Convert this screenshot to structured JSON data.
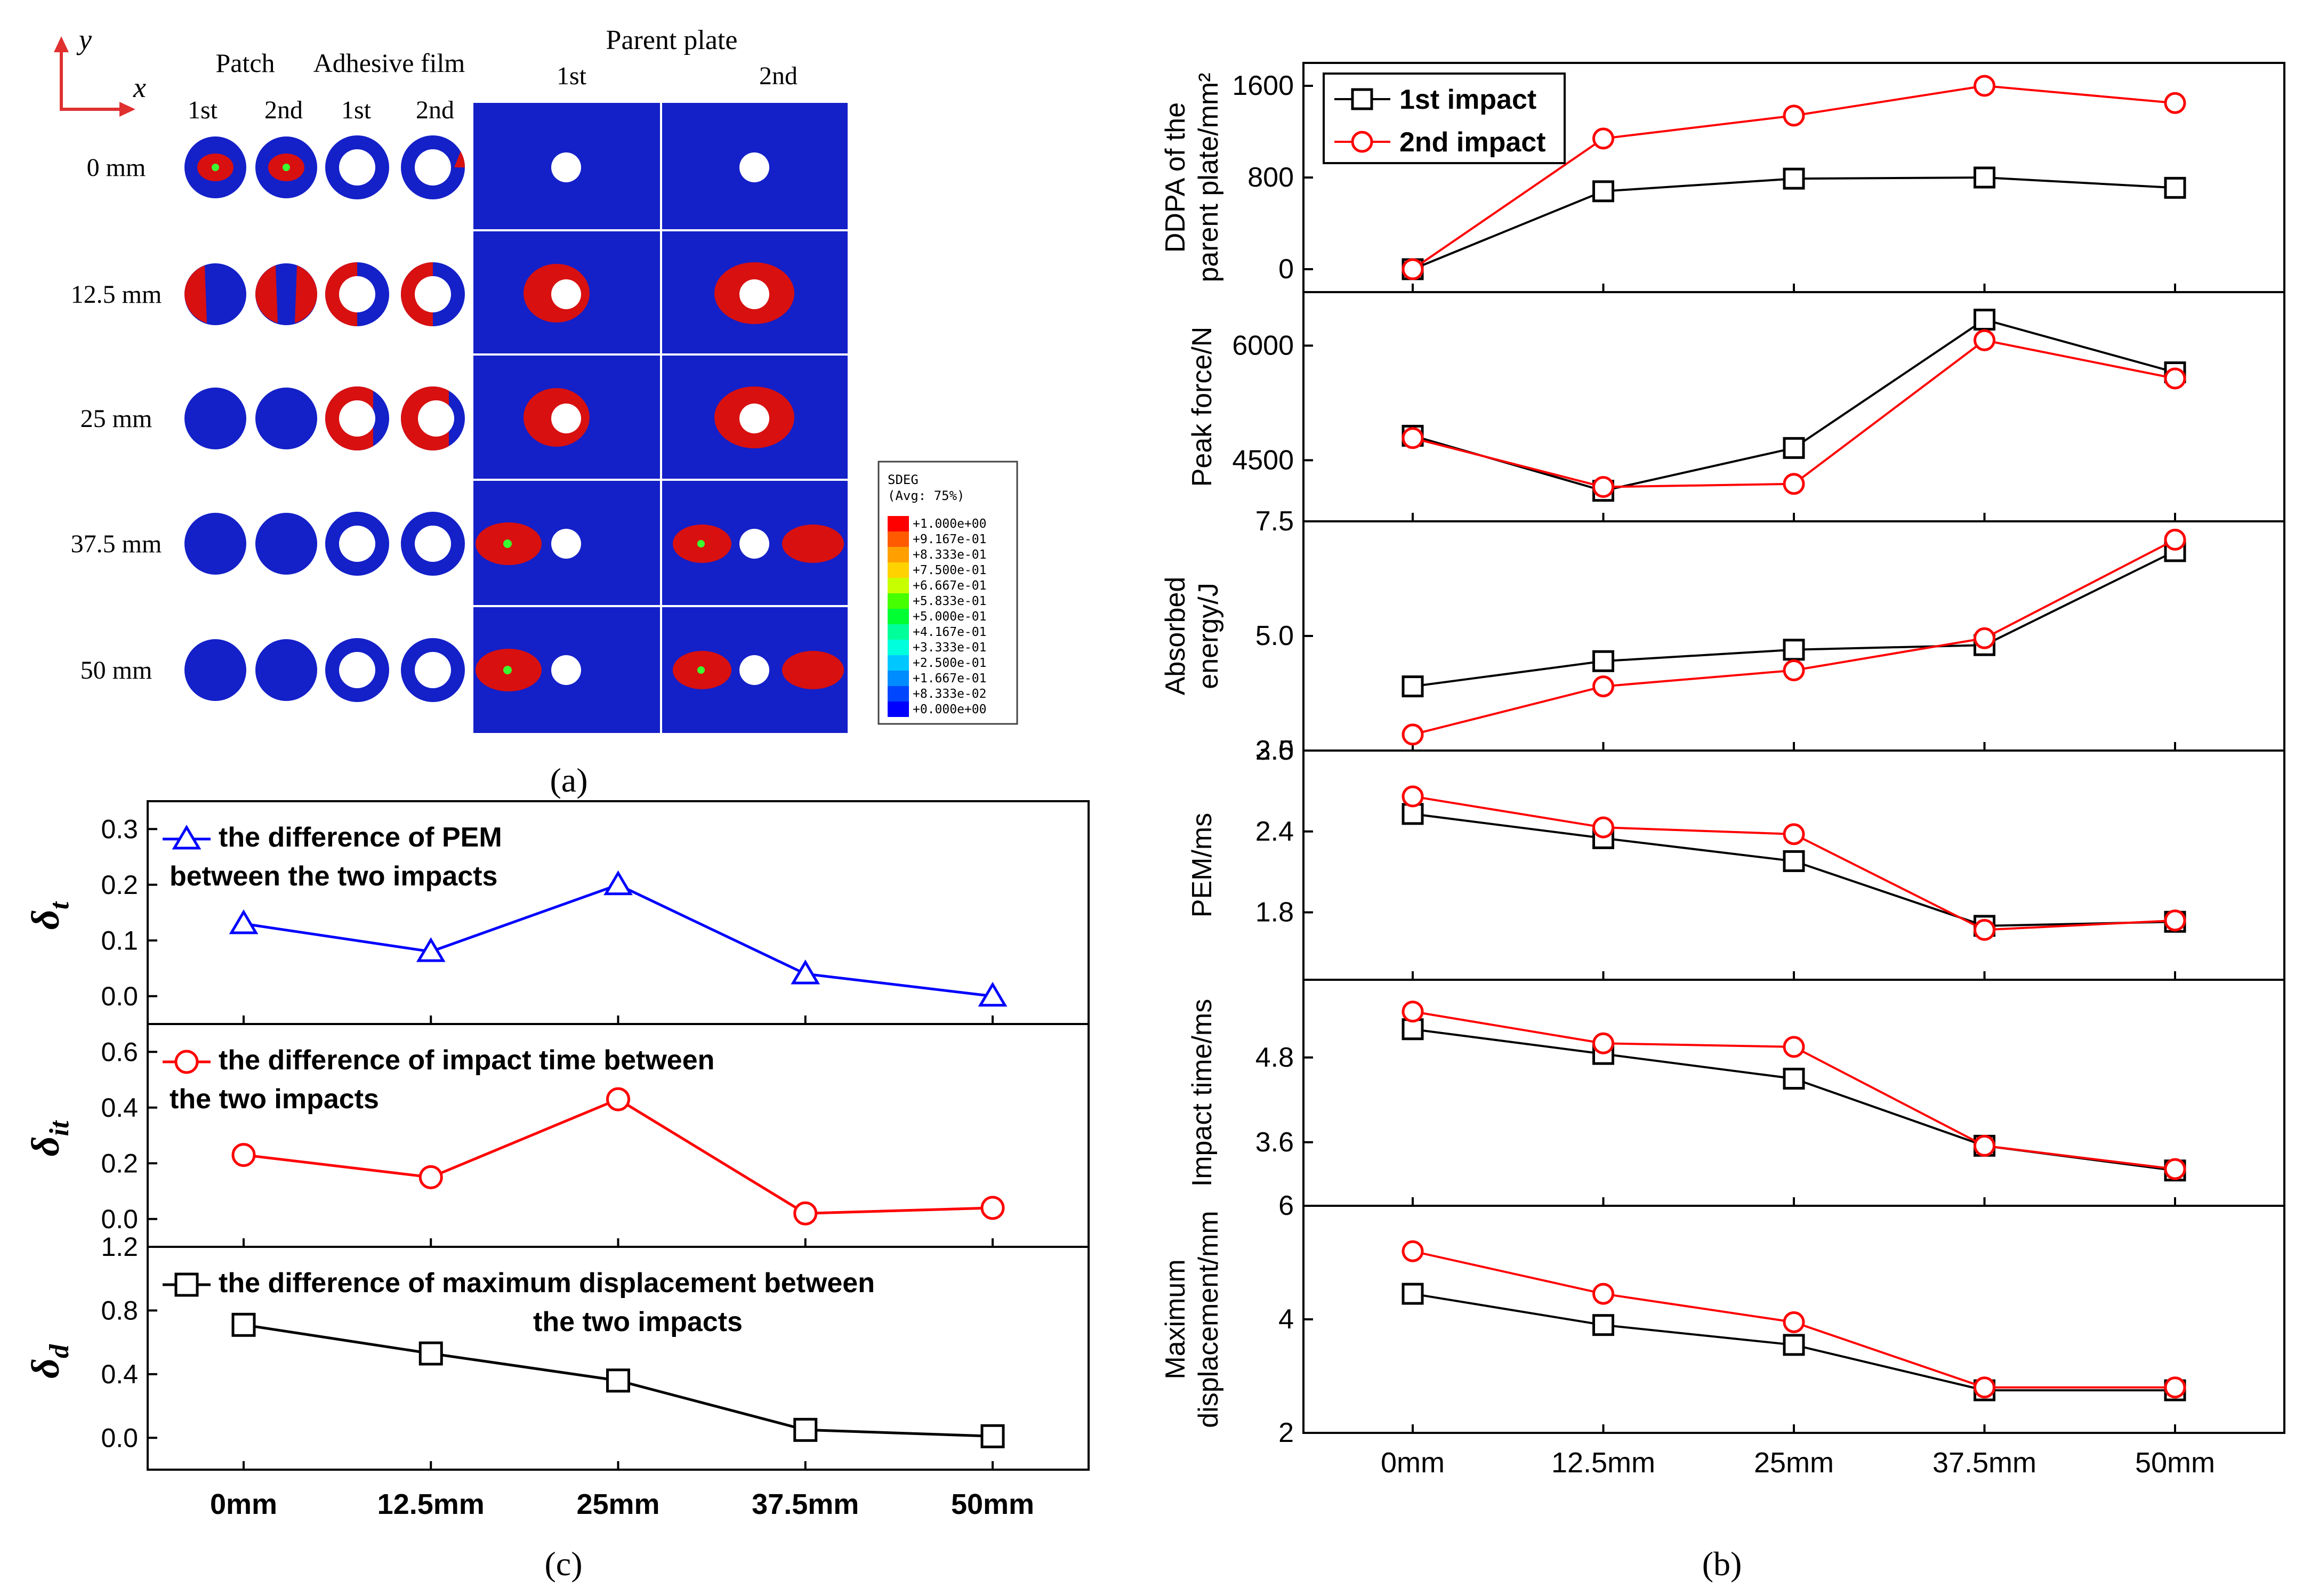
{
  "panel_a": {
    "caption": "(a)",
    "axis_y": "y",
    "axis_x": "x",
    "headers": {
      "patch": "Patch",
      "adhesive": "Adhesive film",
      "parent": "Parent plate",
      "first": "1st",
      "second": "2nd"
    },
    "row_labels": [
      "0 mm",
      "12.5 mm",
      "25 mm",
      "37.5 mm",
      "50 mm"
    ],
    "legend": {
      "title": "SDEG",
      "subtitle": "(Avg: 75%)",
      "entries": [
        "+1.000e+00",
        "+9.167e-01",
        "+8.333e-01",
        "+7.500e-01",
        "+6.667e-01",
        "+5.833e-01",
        "+5.000e-01",
        "+4.167e-01",
        "+3.333e-01",
        "+2.500e-01",
        "+1.667e-01",
        "+8.333e-02",
        "+0.000e+00"
      ],
      "colors": [
        "#ff0000",
        "#ff5a00",
        "#ffa000",
        "#ffd200",
        "#c8ff00",
        "#46ff00",
        "#00ff32",
        "#00ff9a",
        "#00ffdc",
        "#00c8ff",
        "#008cff",
        "#0046ff",
        "#0000ff"
      ]
    },
    "colors": {
      "field": "#1420c8",
      "damage": "#d81010",
      "hole": "#ffffff"
    }
  },
  "panel_c": {
    "caption": "(c)",
    "x_ticks": [
      "0mm",
      "12.5mm",
      "25mm",
      "37.5mm",
      "50mm"
    ]
  },
  "panel_b": {
    "caption": "(b)",
    "x_ticks": [
      "0mm",
      "12.5mm",
      "25mm",
      "37.5mm",
      "50mm"
    ],
    "legend": [
      "1st impact",
      "2nd impact"
    ]
  },
  "chart_data": [
    {
      "type": "line",
      "panel": "c-top",
      "ylabel": "δ_t",
      "categories": [
        "0mm",
        "12.5mm",
        "25mm",
        "37.5mm",
        "50mm"
      ],
      "ylim": [
        -0.05,
        0.35
      ],
      "yticks": [
        "0.0",
        "0.1",
        "0.2",
        "0.3"
      ],
      "series": [
        {
          "name": "the difference of PEM between the two impacts",
          "legend_lines": [
            "the difference of PEM",
            "between the two impacts"
          ],
          "color": "#0000ff",
          "marker": "triangle",
          "values": [
            0.13,
            0.08,
            0.2,
            0.04,
            0.0
          ]
        }
      ]
    },
    {
      "type": "line",
      "panel": "c-middle",
      "ylabel": "δ_it",
      "categories": [
        "0mm",
        "12.5mm",
        "25mm",
        "37.5mm",
        "50mm"
      ],
      "ylim": [
        -0.1,
        0.7
      ],
      "yticks": [
        "0.0",
        "0.2",
        "0.4",
        "0.6"
      ],
      "series": [
        {
          "name": "the difference of impact time between the two impacts",
          "legend_lines": [
            "the difference of impact time between",
            "the two impacts"
          ],
          "color": "#ff0000",
          "marker": "circle",
          "values": [
            0.23,
            0.15,
            0.43,
            0.02,
            0.04
          ]
        }
      ]
    },
    {
      "type": "line",
      "panel": "c-bottom",
      "ylabel": "δ_d",
      "categories": [
        "0mm",
        "12.5mm",
        "25mm",
        "37.5mm",
        "50mm"
      ],
      "ylim": [
        -0.2,
        1.2
      ],
      "yticks": [
        "0.0",
        "0.4",
        "0.8",
        "1.2"
      ],
      "series": [
        {
          "name": "the difference of maximum displacement between the two impacts",
          "legend_lines": [
            "the difference of maximum displacement between",
            "the two impacts"
          ],
          "color": "#000000",
          "marker": "square",
          "values": [
            0.71,
            0.53,
            0.36,
            0.05,
            0.01
          ]
        }
      ]
    },
    {
      "type": "line",
      "panel": "b-1",
      "ylabel": "DDPA of the parent plate/mm²",
      "ylabel_lines": [
        "DDPA of the",
        "parent plate/mm²"
      ],
      "categories": [
        "0mm",
        "12.5mm",
        "25mm",
        "37.5mm",
        "50mm"
      ],
      "ylim": [
        -200,
        1800
      ],
      "yticks": [
        "0",
        "800",
        "1600"
      ],
      "series": [
        {
          "name": "1st impact",
          "color": "#000000",
          "marker": "square",
          "values": [
            0,
            680,
            790,
            800,
            710
          ]
        },
        {
          "name": "2nd impact",
          "color": "#ff0000",
          "marker": "circle",
          "values": [
            0,
            1140,
            1340,
            1600,
            1450
          ]
        }
      ]
    },
    {
      "type": "line",
      "panel": "b-2",
      "ylabel": "Peak force/N",
      "ylabel_lines": [
        "Peak force/N"
      ],
      "categories": [
        "0mm",
        "12.5mm",
        "25mm",
        "37.5mm",
        "50mm"
      ],
      "ylim": [
        3700,
        6700
      ],
      "yticks": [
        "4500",
        "6000"
      ],
      "series": [
        {
          "name": "1st impact",
          "color": "#000000",
          "marker": "square",
          "values": [
            4820,
            4100,
            4660,
            6340,
            5650
          ]
        },
        {
          "name": "2nd impact",
          "color": "#ff0000",
          "marker": "circle",
          "values": [
            4790,
            4150,
            4190,
            6070,
            5570
          ]
        }
      ]
    },
    {
      "type": "line",
      "panel": "b-3",
      "ylabel": "Absorbed energy/J",
      "ylabel_lines": [
        "Absorbed",
        "energy/J"
      ],
      "categories": [
        "0mm",
        "12.5mm",
        "25mm",
        "37.5mm",
        "50mm"
      ],
      "ylim": [
        2.5,
        7.5
      ],
      "yticks": [
        "2.5",
        "5.0",
        "7.5"
      ],
      "series": [
        {
          "name": "1st impact",
          "color": "#000000",
          "marker": "square",
          "values": [
            3.9,
            4.45,
            4.7,
            4.8,
            6.85
          ]
        },
        {
          "name": "2nd impact",
          "color": "#ff0000",
          "marker": "circle",
          "values": [
            2.85,
            3.9,
            4.25,
            4.95,
            7.1
          ]
        }
      ]
    },
    {
      "type": "line",
      "panel": "b-4",
      "ylabel": "PEM/ms",
      "ylabel_lines": [
        "PEM/ms"
      ],
      "categories": [
        "0mm",
        "12.5mm",
        "25mm",
        "37.5mm",
        "50mm"
      ],
      "ylim": [
        1.3,
        3.0
      ],
      "yticks": [
        "1.8",
        "2.4",
        "3.0"
      ],
      "series": [
        {
          "name": "1st impact",
          "color": "#000000",
          "marker": "square",
          "values": [
            2.53,
            2.35,
            2.18,
            1.7,
            1.73
          ]
        },
        {
          "name": "2nd impact",
          "color": "#ff0000",
          "marker": "circle",
          "values": [
            2.66,
            2.43,
            2.38,
            1.67,
            1.74
          ]
        }
      ]
    },
    {
      "type": "line",
      "panel": "b-5",
      "ylabel": "Impact time/ms",
      "ylabel_lines": [
        "Impact time/ms"
      ],
      "categories": [
        "0mm",
        "12.5mm",
        "25mm",
        "37.5mm",
        "50mm"
      ],
      "ylim": [
        2.7,
        5.9
      ],
      "yticks": [
        "3.6",
        "4.8"
      ],
      "series": [
        {
          "name": "1st impact",
          "color": "#000000",
          "marker": "square",
          "values": [
            5.2,
            4.85,
            4.5,
            3.55,
            3.2
          ]
        },
        {
          "name": "2nd impact",
          "color": "#ff0000",
          "marker": "circle",
          "values": [
            5.45,
            5.0,
            4.95,
            3.55,
            3.22
          ]
        }
      ]
    },
    {
      "type": "line",
      "panel": "b-6",
      "ylabel": "Maximum displacement/mm",
      "ylabel_lines": [
        "Maximum",
        "displacement/mm"
      ],
      "categories": [
        "0mm",
        "12.5mm",
        "25mm",
        "37.5mm",
        "50mm"
      ],
      "ylim": [
        2,
        6
      ],
      "yticks": [
        "2",
        "4",
        "6"
      ],
      "series": [
        {
          "name": "1st impact",
          "color": "#000000",
          "marker": "square",
          "values": [
            4.45,
            3.9,
            3.55,
            2.75,
            2.75
          ]
        },
        {
          "name": "2nd impact",
          "color": "#ff0000",
          "marker": "circle",
          "values": [
            5.2,
            4.45,
            3.95,
            2.8,
            2.8
          ]
        }
      ]
    }
  ]
}
